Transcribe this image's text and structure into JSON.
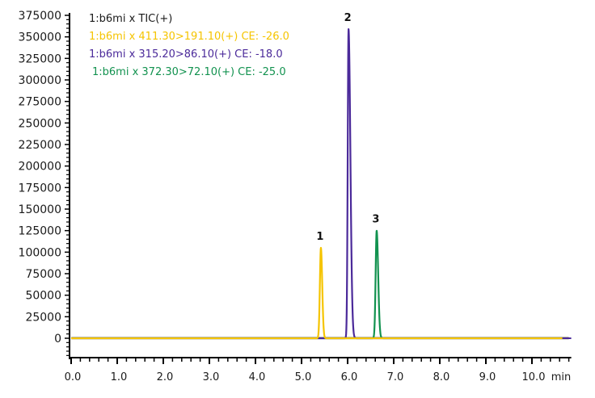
{
  "chart_data": {
    "type": "line",
    "title": "",
    "xlabel": "min",
    "ylabel": "",
    "xlim": [
      0.0,
      10.8
    ],
    "ylim": [
      0,
      375000
    ],
    "grid": false,
    "legend_position": "top-left (inside plot)",
    "x_ticks": [
      "0.0",
      "1.0",
      "2.0",
      "3.0",
      "4.0",
      "5.0",
      "6.0",
      "7.0",
      "8.0",
      "9.0",
      "10.0"
    ],
    "y_ticks": [
      "0",
      "25000",
      "50000",
      "75000",
      "100000",
      "125000",
      "150000",
      "175000",
      "200000",
      "225000",
      "250000",
      "275000",
      "300000",
      "325000",
      "350000",
      "375000"
    ],
    "legend": [
      {
        "label": "1:b6mi x TIC(+)",
        "color": "#1a1a1a"
      },
      {
        "label": "1:b6mi x 411.30>191.10(+) CE: -26.0",
        "color": "#f5c400"
      },
      {
        "label": "1:b6mi x  315.20>86.10(+) CE: -18.0",
        "color": "#4b2a9a"
      },
      {
        "label": "1:b6mi x  372.30>72.10(+) CE: -25.0",
        "color": "#12924f"
      }
    ],
    "series": [
      {
        "name": "1:b6mi x 411.30>191.10(+) CE: -26.0",
        "color": "#f5c400",
        "peak_rt": 5.42,
        "peak_height": 105000,
        "peak_label": "1"
      },
      {
        "name": "1:b6mi x  315.20>86.10(+) CE: -18.0",
        "color": "#4b2a9a",
        "peak_rt": 6.02,
        "peak_height": 359000,
        "peak_label": "2"
      },
      {
        "name": "1:b6mi x  372.30>72.10(+) CE: -25.0",
        "color": "#12924f",
        "peak_rt": 6.63,
        "peak_height": 125000,
        "peak_label": "3"
      }
    ],
    "peak_annotations": [
      {
        "label": "1",
        "x": 5.42,
        "y": 105000
      },
      {
        "label": "2",
        "x": 6.02,
        "y": 359000
      },
      {
        "label": "3",
        "x": 6.63,
        "y": 125000
      }
    ],
    "baseline": {
      "x_start": 0.0,
      "x_end": 10.8,
      "y": 0
    }
  }
}
